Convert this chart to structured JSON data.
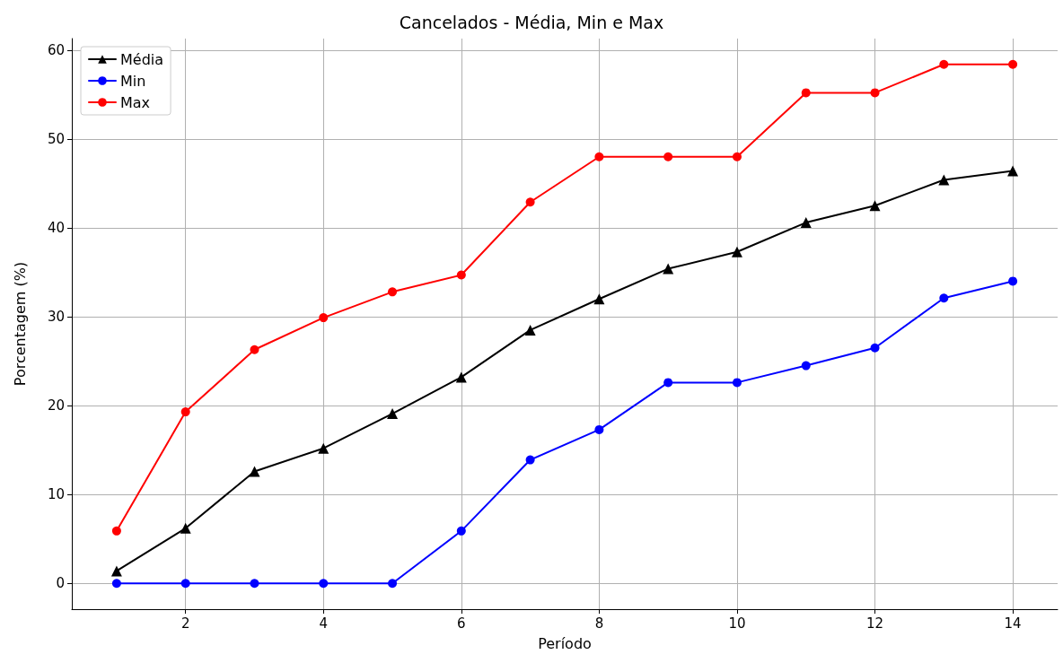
{
  "chart_data": {
    "type": "line",
    "title": "Cancelados - Média, Min e Max",
    "xlabel": "Período",
    "ylabel": "Porcentagem (%)",
    "x": [
      1,
      2,
      3,
      4,
      5,
      6,
      7,
      8,
      9,
      10,
      11,
      12,
      13,
      14
    ],
    "series": [
      {
        "name": "Média",
        "color": "#000000",
        "marker": "triangle",
        "values": [
          1.4,
          6.2,
          12.6,
          15.2,
          19.1,
          23.2,
          28.5,
          32.0,
          35.4,
          37.3,
          40.6,
          42.5,
          45.4,
          46.4
        ]
      },
      {
        "name": "Min",
        "color": "#0000ff",
        "marker": "circle",
        "values": [
          0,
          0,
          0,
          0,
          0,
          5.9,
          13.9,
          17.3,
          22.6,
          22.6,
          24.5,
          26.5,
          32.1,
          34.0
        ]
      },
      {
        "name": "Max",
        "color": "#ff0000",
        "marker": "circle",
        "values": [
          5.9,
          19.3,
          26.3,
          29.9,
          32.8,
          34.7,
          42.9,
          48.0,
          48.0,
          48.0,
          55.2,
          55.2,
          58.4,
          58.4
        ]
      }
    ],
    "xlim": [
      0.35,
      14.65
    ],
    "xticks": [
      2,
      4,
      6,
      8,
      10,
      12,
      14
    ],
    "ylim": [
      -2.9,
      61.3
    ],
    "yticks": [
      0,
      10,
      20,
      30,
      40,
      50,
      60
    ],
    "grid": true,
    "legend": "top left",
    "line_style": "solid"
  }
}
